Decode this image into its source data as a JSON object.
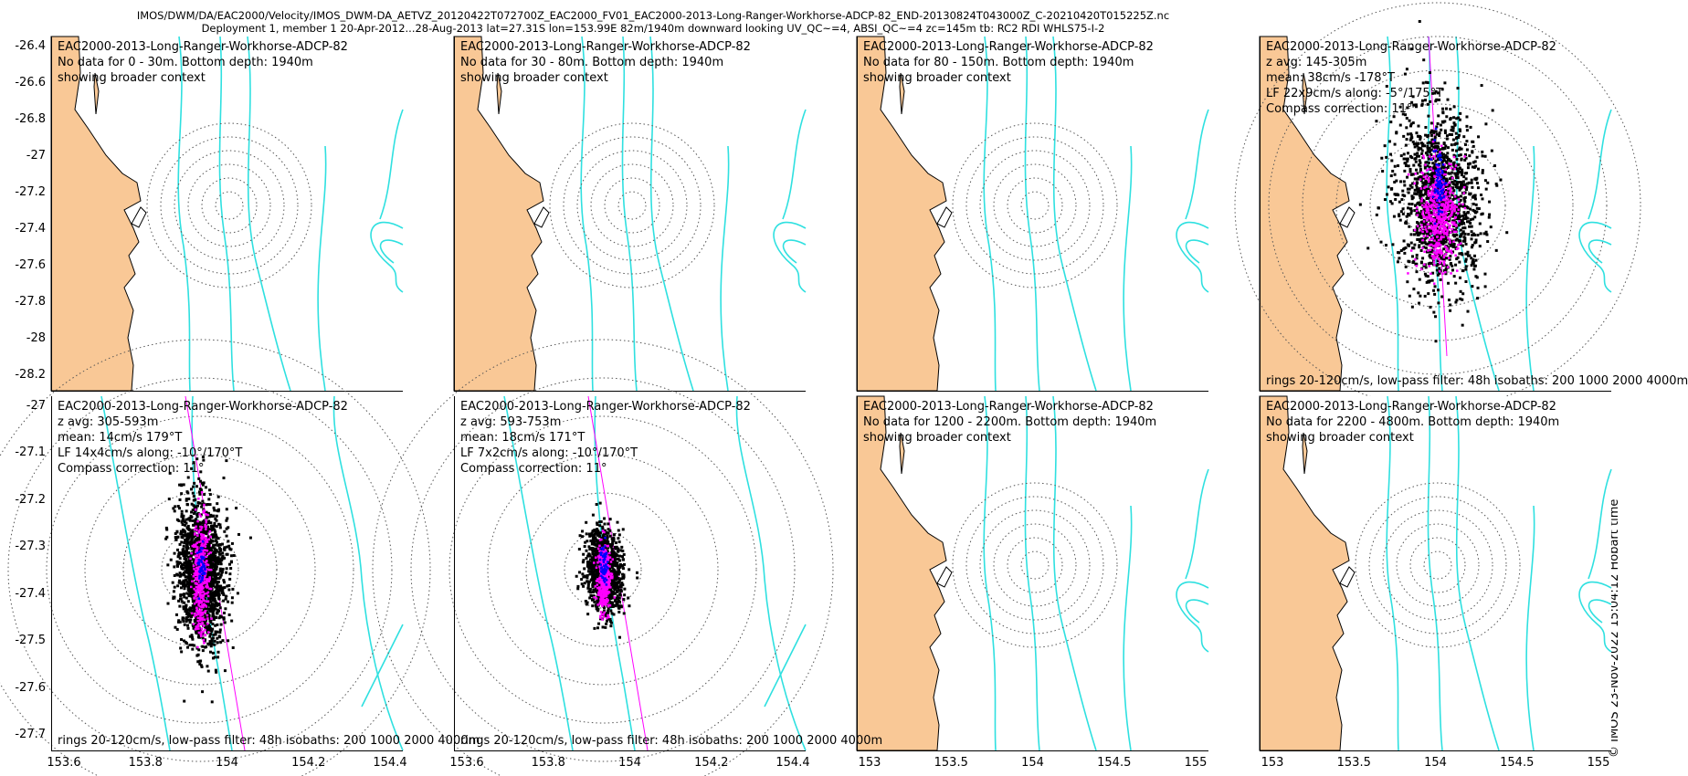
{
  "title_line1": "IMOS/DWM/DA/EAC2000/Velocity/IMOS_DWM-DA_AETVZ_20120422T072700Z_EAC2000_FV01_EAC2000-2013-Long-Ranger-Workhorse-ADCP-82_END-20130824T043000Z_C-20210420T015225Z.nc",
  "title_line2": "Deployment 1, member 1 20-Apr-2012...28-Aug-2013 lat=27.31S lon=153.99E 82m/1940m downward looking UV_QC~=4, ABSI_QC~=4 zc=145m tb: RC2 RDI WHLS75-I-2",
  "timestamp": "© IMOS 23-Nov-2022 15:04:12 Hobart time",
  "colors": {
    "land": "#f9c896",
    "isobath": "#2fe0e0",
    "scatter_main": "#000000",
    "scatter_lp": "#ff00ff",
    "scatter_avg": "#0000ff",
    "axis_line": "#ff00ff"
  },
  "chart_data": [
    {
      "type": "scatter",
      "layout": "wide",
      "empty": true,
      "lines": [
        "EAC2000-2013-Long-Ranger-Workhorse-ADCP-82",
        "No data for 0 - 30m. Bottom depth: 1940m",
        "showing broader context"
      ],
      "footer": "",
      "yticks": [
        "-26.4",
        "-26.6",
        "-26.8",
        "-27",
        "-27.2",
        "-27.4",
        "-27.6",
        "-27.8",
        "-28",
        "-28.2"
      ],
      "xticks": []
    },
    {
      "type": "scatter",
      "layout": "wide",
      "empty": true,
      "lines": [
        "EAC2000-2013-Long-Ranger-Workhorse-ADCP-82",
        "No data for 30 - 80m. Bottom depth: 1940m",
        "showing broader context"
      ],
      "footer": "",
      "yticks": [],
      "xticks": []
    },
    {
      "type": "scatter",
      "layout": "wide",
      "empty": true,
      "lines": [
        "EAC2000-2013-Long-Ranger-Workhorse-ADCP-82",
        "No data for 80 - 150m. Bottom depth: 1940m",
        "showing broader context"
      ],
      "footer": "",
      "yticks": [],
      "xticks": []
    },
    {
      "type": "scatter",
      "layout": "wide",
      "empty": false,
      "cloud": "tall",
      "lines": [
        "EAC2000-2013-Long-Ranger-Workhorse-ADCP-82",
        "z avg: 145-305m",
        "mean: 38cm/s -178°T",
        "LF 22x9cm/s along: -5°/175°T",
        "Compass correction: 11°"
      ],
      "footer": "rings 20-120cm/s, low-pass filter: 48h isobaths: 200 1000 2000 4000m",
      "yticks": [],
      "xticks": []
    },
    {
      "type": "scatter",
      "layout": "zoom",
      "empty": false,
      "cloud": "mid",
      "lines": [
        "EAC2000-2013-Long-Ranger-Workhorse-ADCP-82",
        "z avg: 305-593m",
        "mean: 14cm/s 179°T",
        "LF 14x4cm/s along: -10°/170°T",
        "Compass correction: 11°"
      ],
      "footer": "rings 20-120cm/s, low-pass filter: 48h isobaths: 200 1000 2000 4000m",
      "yticks": [
        "-27",
        "-27.1",
        "-27.2",
        "-27.3",
        "-27.4",
        "-27.5",
        "-27.6",
        "-27.7"
      ],
      "xticks": [
        "153.6",
        "153.8",
        "154",
        "154.2",
        "154.4"
      ]
    },
    {
      "type": "scatter",
      "layout": "zoom",
      "empty": false,
      "cloud": "small",
      "lines": [
        "EAC2000-2013-Long-Ranger-Workhorse-ADCP-82",
        "z avg: 593-753m",
        "mean: 18cm/s 171°T",
        "LF 7x2cm/s along: -10°/170°T",
        "Compass correction: 11°"
      ],
      "footer": "rings 20-120cm/s, low-pass filter: 48h isobaths: 200 1000 2000 4000m",
      "yticks": [],
      "xticks": [
        "153.6",
        "153.8",
        "154",
        "154.2",
        "154.4"
      ]
    },
    {
      "type": "scatter",
      "layout": "wide",
      "empty": true,
      "lines": [
        "EAC2000-2013-Long-Ranger-Workhorse-ADCP-82",
        "No data for 1200 - 2200m. Bottom depth: 1940m",
        "showing broader context"
      ],
      "footer": "",
      "yticks": [],
      "xticks": [
        "153",
        "153.5",
        "154",
        "154.5",
        "155"
      ]
    },
    {
      "type": "scatter",
      "layout": "wide",
      "empty": true,
      "lines": [
        "EAC2000-2013-Long-Ranger-Workhorse-ADCP-82",
        "No data for 2200 - 4800m. Bottom depth: 1940m",
        "showing broader context"
      ],
      "footer": "",
      "yticks": [],
      "xticks": [
        "153",
        "153.5",
        "154",
        "154.5",
        "155"
      ]
    }
  ]
}
